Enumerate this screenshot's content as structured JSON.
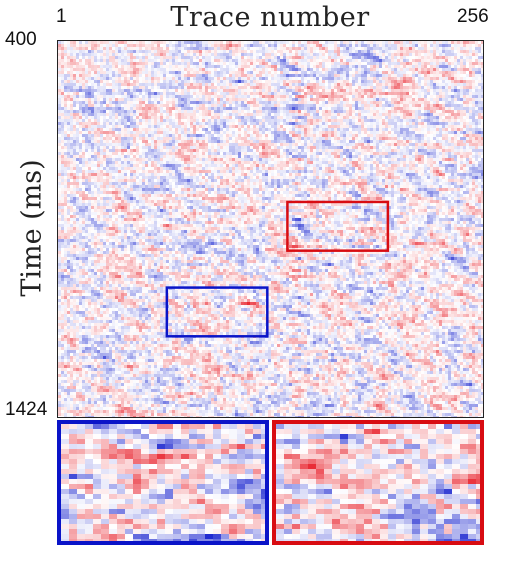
{
  "figure": {
    "title": "Trace number",
    "y_axis_label": "Time (ms)",
    "x_ticks": [
      "1",
      "256"
    ],
    "y_ticks": [
      "400",
      "1424"
    ]
  },
  "colors": {
    "positive": "#e8202a",
    "negative": "#1f2ad0",
    "zero": "#ffffff",
    "blue_box": "#0a14c8",
    "red_box": "#d80c12"
  },
  "colormap": "blue-white-red seismic",
  "highlight_boxes": [
    {
      "name": "blue",
      "trace_range": [
        66,
        126
      ],
      "time_ms_range": [
        1068,
        1200
      ]
    },
    {
      "name": "red",
      "trace_range": [
        138,
        198
      ],
      "time_ms_range": [
        836,
        968
      ]
    }
  ]
}
